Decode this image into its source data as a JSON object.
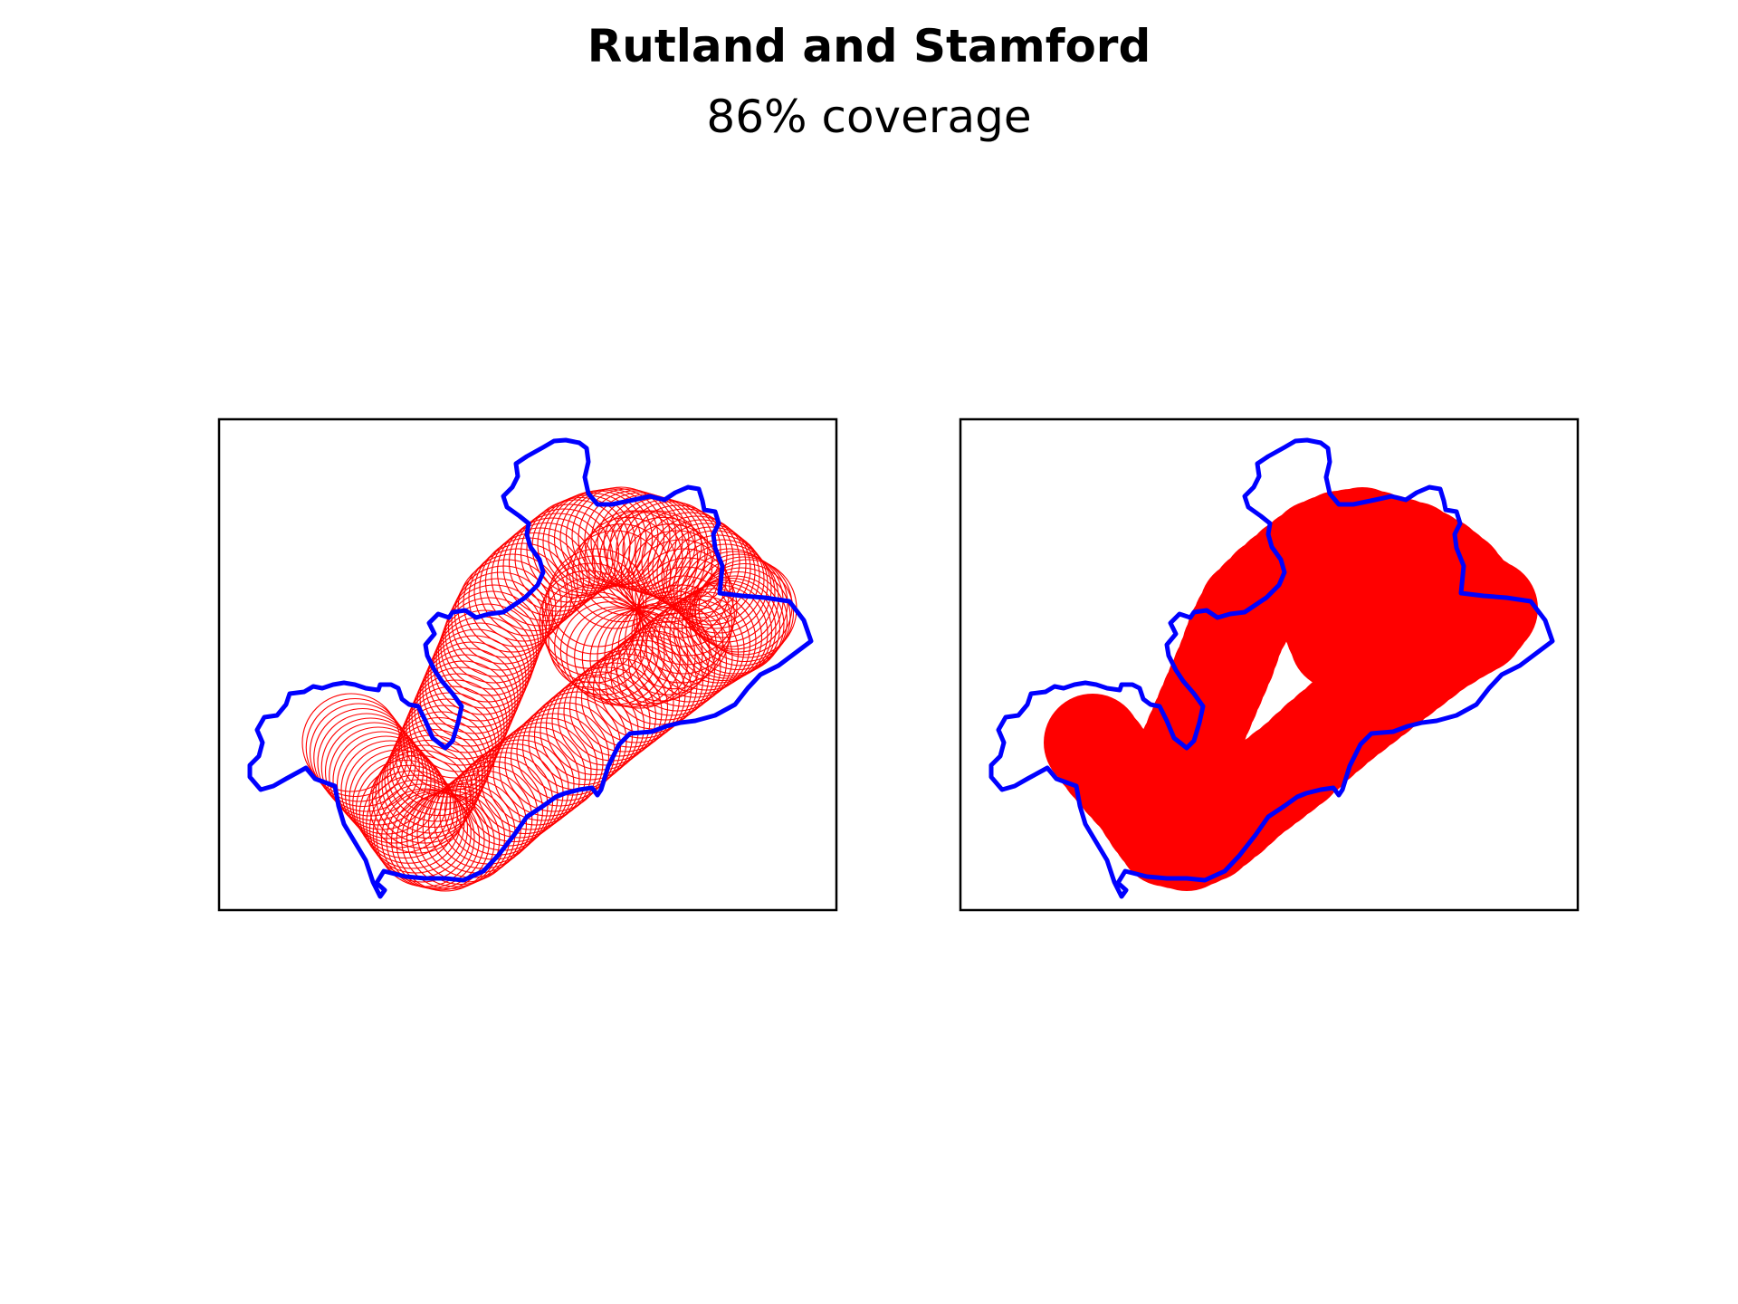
{
  "figure": {
    "title": "Rutland and Stamford",
    "subtitle": "86% coverage"
  },
  "colors": {
    "boundary": "#0000ff",
    "coverage": "#ff0000",
    "frame": "#000000",
    "background": "#ffffff"
  },
  "panels": [
    {
      "name": "circles-outline",
      "circle_style": "outline"
    },
    {
      "name": "circles-filled",
      "circle_style": "filled"
    }
  ]
}
